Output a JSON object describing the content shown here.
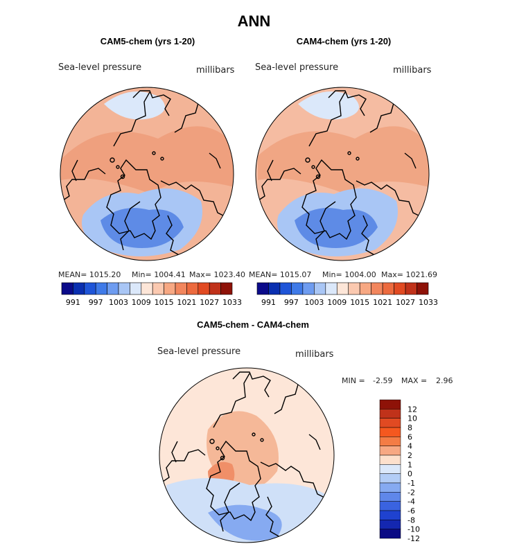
{
  "figure": {
    "title": "ANN"
  },
  "chart_data": [
    {
      "type": "heatmap",
      "title": "CAM5-chem (yrs 1-20)",
      "variable": "Sea-level pressure",
      "units": "millibars",
      "projection": "north polar stereographic",
      "stats": {
        "mean": "MEAN= 1015.20",
        "min": "Min= 1004.41",
        "max": "Max= 1023.40"
      },
      "colorbar": {
        "orientation": "horizontal",
        "colors": [
          "#0b0b8a",
          "#0a2fb0",
          "#1f55d8",
          "#3f7ae8",
          "#6e9cf0",
          "#a9c6f5",
          "#dbe8fa",
          "#fde6d8",
          "#fbc9b0",
          "#f7a883",
          "#f2865d",
          "#ec6a3e",
          "#e14a22",
          "#c0321a",
          "#8e1208"
        ],
        "tick_labels": [
          "991",
          "997",
          "1003",
          "1009",
          "1015",
          "1021",
          "1027",
          "1033"
        ]
      },
      "regions": {
        "background": "#f3b497",
        "high": "#efa07e",
        "low_mid": "#a9c6f5",
        "low_deep": "#5e8be6",
        "arctic": "#dbe8fa"
      }
    },
    {
      "type": "heatmap",
      "title": "CAM4-chem (yrs 1-20)",
      "variable": "Sea-level pressure",
      "units": "millibars",
      "projection": "north polar stereographic",
      "stats": {
        "mean": "MEAN= 1015.07",
        "min": "Min= 1004.00",
        "max": "Max= 1021.69"
      },
      "colorbar": {
        "orientation": "horizontal",
        "colors": [
          "#0b0b8a",
          "#0a2fb0",
          "#1f55d8",
          "#3f7ae8",
          "#6e9cf0",
          "#a9c6f5",
          "#dbe8fa",
          "#fde6d8",
          "#fbc9b0",
          "#f7a883",
          "#f2865d",
          "#ec6a3e",
          "#e14a22",
          "#c0321a",
          "#8e1208"
        ],
        "tick_labels": [
          "991",
          "997",
          "1003",
          "1009",
          "1015",
          "1021",
          "1027",
          "1033"
        ]
      },
      "regions": {
        "background": "#f5bca2",
        "high": "#f0a684",
        "low_mid": "#a9c6f5",
        "low_deep": "#5e8be6",
        "arctic": "#dbe8fa"
      }
    },
    {
      "type": "heatmap",
      "title": "CAM5-chem - CAM4-chem",
      "variable": "Sea-level pressure",
      "units": "millibars",
      "projection": "north polar stereographic",
      "stats": {
        "min_label": "MIN =",
        "min": "-2.59",
        "max_label": "MAX =",
        "max": "2.96"
      },
      "colorbar": {
        "orientation": "vertical",
        "colors": [
          "#8e1208",
          "#c0321a",
          "#e14a22",
          "#f5581f",
          "#f47c45",
          "#f7a883",
          "#fde0cc",
          "#dbe8fa",
          "#b3cdf6",
          "#86aaf1",
          "#5f87ea",
          "#3a63e0",
          "#1f42cf",
          "#1427b0",
          "#0a0a84"
        ],
        "tick_labels": [
          "12",
          "10",
          "8",
          "6",
          "4",
          "2",
          "1",
          "0",
          "-1",
          "-2",
          "-4",
          "-6",
          "-8",
          "-10",
          "-12"
        ]
      },
      "regions": {
        "background": "#fde6d8",
        "positive": "#f5b898",
        "positive_strong": "#f08f68",
        "negative": "#cfe0f8",
        "negative_strong": "#86aaf1"
      }
    }
  ]
}
